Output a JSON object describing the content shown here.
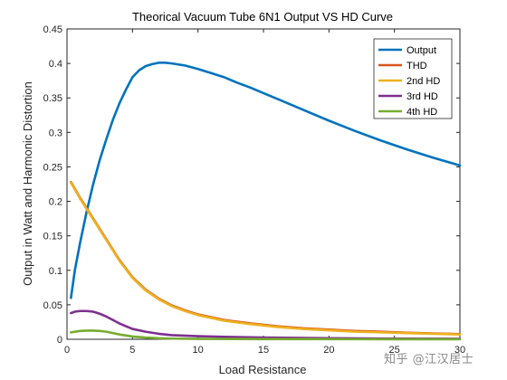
{
  "chart_data": {
    "type": "line",
    "title": "Theorical Vacuum Tube 6N1 Output VS HD Curve",
    "xlabel": "Load Resistance",
    "ylabel": "Output in Watt and Harmonic Distortion",
    "xlim": [
      0,
      30
    ],
    "ylim": [
      0,
      0.45
    ],
    "xticks": [
      0,
      5,
      10,
      15,
      20,
      25,
      30
    ],
    "yticks": [
      0,
      0.05,
      0.1,
      0.15,
      0.2,
      0.25,
      0.3,
      0.35,
      0.4,
      0.45
    ],
    "ytick_labels": [
      "0",
      "0.05",
      "0.1",
      "0.15",
      "0.2",
      "0.25",
      "0.3",
      "0.35",
      "0.4",
      "0.45"
    ],
    "grid": false,
    "legend_position": "top-right",
    "series": [
      {
        "name": "Output",
        "color": "#0072BD",
        "x": [
          0.3,
          0.6,
          1,
          1.5,
          2,
          2.5,
          3,
          3.5,
          4,
          4.5,
          5,
          5.5,
          6,
          6.5,
          7,
          7.5,
          8,
          9,
          10,
          11,
          12,
          13,
          14,
          15,
          16,
          17,
          18,
          19,
          20,
          22,
          24,
          26,
          28,
          30
        ],
        "y": [
          0.06,
          0.1,
          0.14,
          0.185,
          0.225,
          0.26,
          0.29,
          0.318,
          0.342,
          0.362,
          0.38,
          0.39,
          0.396,
          0.399,
          0.401,
          0.401,
          0.4,
          0.397,
          0.392,
          0.386,
          0.38,
          0.372,
          0.365,
          0.357,
          0.349,
          0.341,
          0.333,
          0.325,
          0.317,
          0.302,
          0.288,
          0.275,
          0.263,
          0.252
        ]
      },
      {
        "name": "THD",
        "color": "#D95319",
        "x": [
          0.3,
          1,
          2,
          3,
          4,
          5,
          6,
          7,
          8,
          9,
          10,
          12,
          14,
          16,
          18,
          20,
          22,
          24,
          26,
          28,
          30
        ],
        "y": [
          0.228,
          0.205,
          0.175,
          0.145,
          0.115,
          0.09,
          0.072,
          0.059,
          0.049,
          0.042,
          0.036,
          0.028,
          0.023,
          0.019,
          0.016,
          0.014,
          0.012,
          0.011,
          0.0095,
          0.0085,
          0.0075
        ]
      },
      {
        "name": "2nd HD",
        "color": "#EDB120",
        "x": [
          0.3,
          1,
          2,
          3,
          4,
          5,
          6,
          7,
          8,
          9,
          10,
          12,
          14,
          16,
          18,
          20,
          22,
          24,
          26,
          28,
          30
        ],
        "y": [
          0.227,
          0.204,
          0.174,
          0.144,
          0.114,
          0.089,
          0.071,
          0.058,
          0.048,
          0.041,
          0.035,
          0.027,
          0.022,
          0.018,
          0.015,
          0.013,
          0.011,
          0.01,
          0.009,
          0.008,
          0.007
        ]
      },
      {
        "name": "3rd HD",
        "color": "#7E2F8E",
        "x": [
          0.3,
          0.6,
          1,
          1.5,
          2,
          2.5,
          3,
          3.5,
          4,
          4.5,
          5,
          6,
          7,
          8,
          10,
          12,
          15,
          20,
          25,
          30
        ],
        "y": [
          0.038,
          0.04,
          0.041,
          0.041,
          0.04,
          0.037,
          0.033,
          0.028,
          0.023,
          0.019,
          0.015,
          0.011,
          0.008,
          0.006,
          0.0045,
          0.0035,
          0.0025,
          0.0015,
          0.001,
          0.0008
        ]
      },
      {
        "name": "4th HD",
        "color": "#77AC30",
        "x": [
          0.3,
          0.6,
          1,
          1.5,
          2,
          2.5,
          3,
          3.5,
          4,
          5,
          6,
          7,
          8,
          10,
          15,
          20,
          25,
          30
        ],
        "y": [
          0.01,
          0.011,
          0.012,
          0.0125,
          0.0125,
          0.012,
          0.011,
          0.009,
          0.007,
          0.004,
          0.0025,
          0.0015,
          0.001,
          0.0006,
          0.0003,
          0.0002,
          0.0001,
          0.0001
        ]
      }
    ]
  },
  "watermark": {
    "text": "知乎 @江汉居士"
  }
}
